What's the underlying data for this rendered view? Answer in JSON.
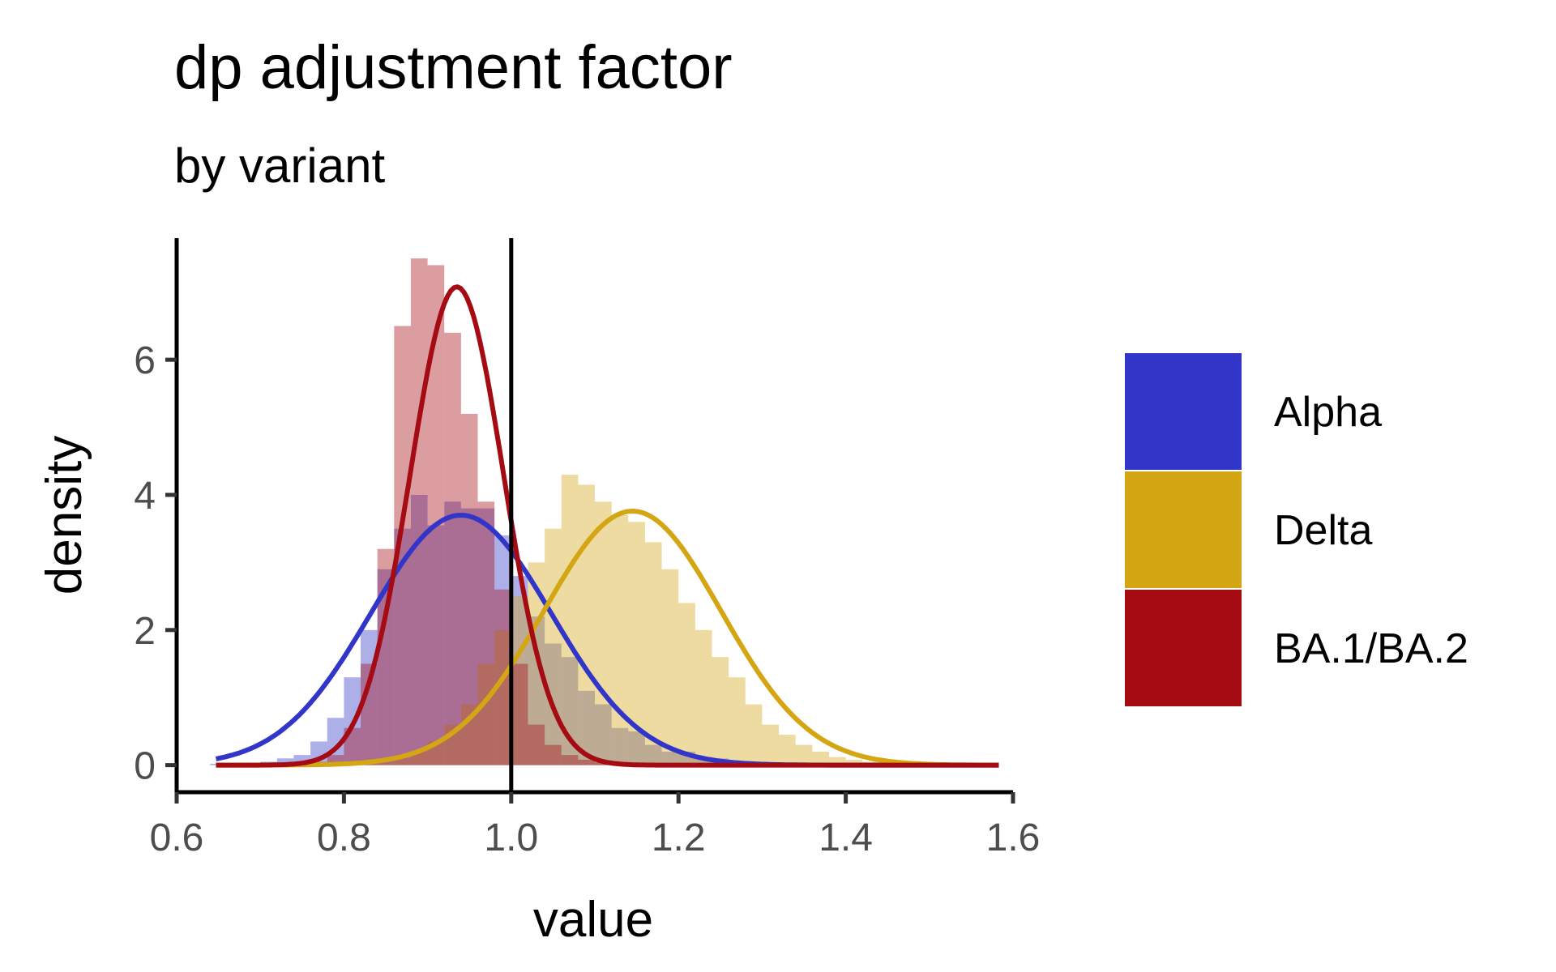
{
  "chart_data": {
    "type": "histogram+density",
    "title": "dp adjustment factor",
    "subtitle": "by variant",
    "xlabel": "value",
    "ylabel": "density",
    "xlim": [
      0.6,
      1.6
    ],
    "ylim": [
      -0.4,
      7.8
    ],
    "x_ticks": [
      0.6,
      0.8,
      1.0,
      1.2,
      1.4,
      1.6
    ],
    "x_tick_labels": [
      "0.6",
      "0.8",
      "1.0",
      "1.2",
      "1.4",
      "1.6"
    ],
    "y_ticks": [
      0,
      2,
      4,
      6
    ],
    "y_tick_labels": [
      "0",
      "2",
      "4",
      "6"
    ],
    "reference_line_x": 1.0,
    "grid": false,
    "legend_position": "right",
    "bin_width": 0.02,
    "bin_start": 0.64,
    "series": [
      {
        "name": "Alpha",
        "color": "#3236c8",
        "histogram": [
          0.02,
          0.02,
          0.03,
          0.05,
          0.1,
          0.15,
          0.35,
          0.7,
          1.3,
          2.0,
          2.9,
          3.5,
          4.0,
          3.55,
          3.9,
          3.8,
          3.8,
          3.4,
          2.8,
          2.2,
          1.8,
          1.6,
          1.1,
          0.9,
          0.55,
          0.5,
          0.3,
          0.2,
          0.2,
          0.12,
          0.1,
          0.06,
          0.05,
          0.03,
          0.02,
          0.02,
          0.01,
          0.01,
          0.01,
          0.01,
          0.01,
          0.01,
          0.01,
          0.01,
          0.01,
          0.01,
          0.01
        ],
        "density_curve": {
          "mean": 0.94,
          "sd": 0.108,
          "amplitude": 3.7
        }
      },
      {
        "name": "Delta",
        "color": "#d4a613",
        "histogram": [
          0,
          0,
          0,
          0,
          0,
          0,
          0,
          0,
          0.01,
          0.02,
          0.04,
          0.1,
          0.2,
          0.35,
          0.6,
          0.9,
          1.5,
          2.0,
          2.5,
          3.0,
          3.5,
          4.3,
          4.15,
          3.9,
          3.7,
          3.6,
          3.3,
          2.9,
          2.4,
          2.0,
          1.6,
          1.3,
          0.9,
          0.6,
          0.45,
          0.3,
          0.2,
          0.12,
          0.08,
          0.05,
          0.04,
          0.03,
          0.02,
          0.02,
          0.01,
          0.01,
          0.01
        ],
        "density_curve": {
          "mean": 1.145,
          "sd": 0.106,
          "amplitude": 3.76
        }
      },
      {
        "name": "BA.1/BA.2",
        "color": "#a50b12",
        "histogram": [
          0,
          0,
          0,
          0,
          0,
          0,
          0.05,
          0.15,
          0.55,
          1.5,
          3.2,
          6.5,
          7.5,
          7.4,
          6.4,
          5.2,
          3.9,
          2.6,
          1.5,
          0.6,
          0.3,
          0.15,
          0.08,
          0.04,
          0.02,
          0.01,
          0,
          0,
          0,
          0,
          0,
          0,
          0,
          0,
          0,
          0,
          0,
          0,
          0,
          0,
          0,
          0,
          0,
          0,
          0,
          0,
          0
        ],
        "density_curve": {
          "mean": 0.935,
          "sd": 0.056,
          "amplitude": 7.08
        }
      }
    ]
  }
}
